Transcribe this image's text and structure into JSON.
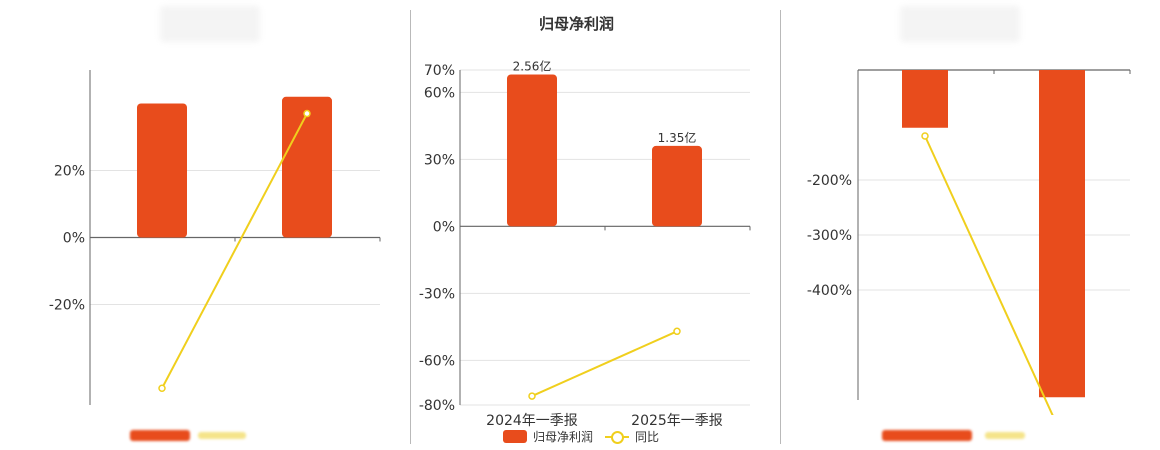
{
  "chart_data": [
    {
      "type": "bar",
      "title": "",
      "ylabel": "",
      "categories": [
        "",
        ""
      ],
      "series": [
        {
          "type": "bar",
          "values": [
            40,
            42
          ]
        },
        {
          "type": "line",
          "values": [
            -45,
            37
          ]
        }
      ],
      "ylim": [
        -50,
        50
      ],
      "ytick_labels": [
        "20%",
        "0%",
        "-20%"
      ],
      "ytick_values": [
        20,
        0,
        -20
      ],
      "grid": true,
      "colors": {
        "bar": "#e84c1c",
        "line": "#f0cf1d"
      }
    },
    {
      "type": "bar",
      "title": "归母净利润",
      "ylabel": "",
      "categories": [
        "2024年一季报",
        "2025年一季报"
      ],
      "series": [
        {
          "name": "归母净利润",
          "type": "bar",
          "values": [
            68,
            36
          ],
          "data_labels": [
            "2.56亿",
            "1.35亿"
          ]
        },
        {
          "name": "同比",
          "type": "line",
          "values": [
            -76,
            -47
          ]
        }
      ],
      "ylim": [
        -80,
        70
      ],
      "ytick_labels": [
        "70%",
        "60%",
        "30%",
        "0%",
        "-30%",
        "-60%",
        "-80%"
      ],
      "ytick_values": [
        70,
        60,
        30,
        0,
        -30,
        -60,
        -80
      ],
      "grid": true,
      "legend": "bottom",
      "colors": {
        "bar": "#e84c1c",
        "line": "#f0cf1d"
      }
    },
    {
      "type": "bar",
      "title": "",
      "ylabel": "",
      "categories": [
        "",
        ""
      ],
      "series": [
        {
          "type": "bar",
          "values": [
            -105,
            -595
          ]
        },
        {
          "type": "line",
          "values": [
            -120,
            -665
          ]
        }
      ],
      "ylim": [
        -600,
        0
      ],
      "ytick_labels": [
        "-200%",
        "-300%",
        "-400%"
      ],
      "ytick_values": [
        -200,
        -300,
        -400
      ],
      "grid": true,
      "colors": {
        "bar": "#e84c1c",
        "line": "#f0cf1d"
      }
    }
  ]
}
